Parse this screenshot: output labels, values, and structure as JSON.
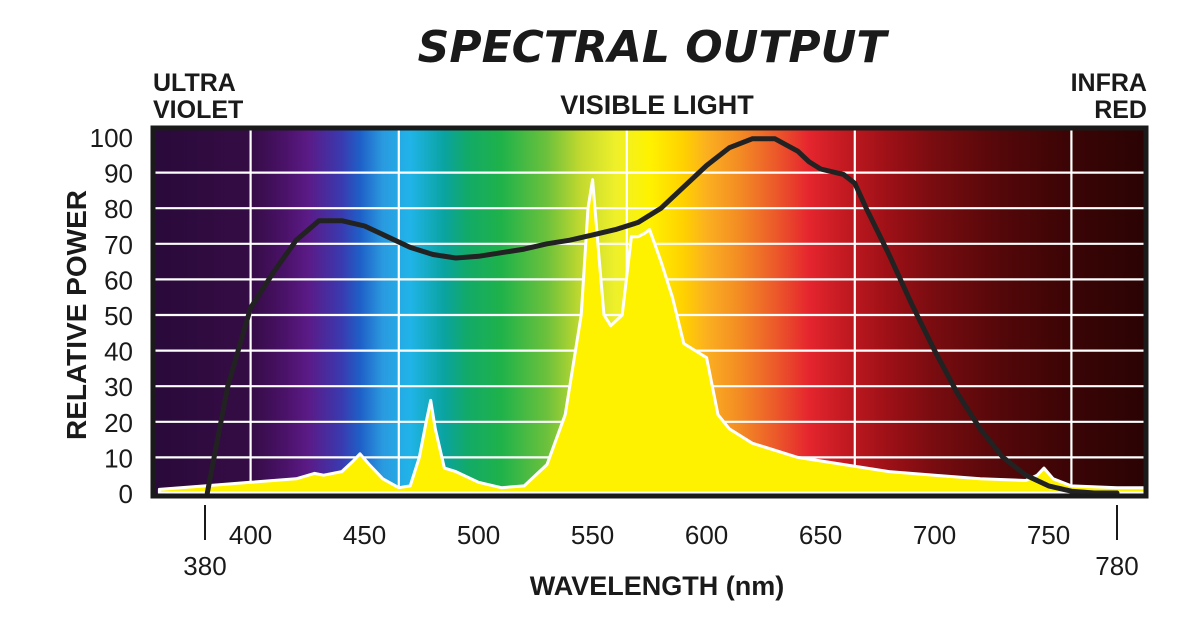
{
  "chart_data": {
    "type": "area",
    "title": "SPECTRAL OUTPUT",
    "xlabel": "WAVELENGTH (nm)",
    "ylabel": "RELATIVE POWER",
    "region_labels": {
      "left_line1": "ULTRA",
      "left_line2": "VIOLET",
      "center": "VISIBLE LIGHT",
      "right_line1": "INFRA",
      "right_line2": "RED"
    },
    "xlim": [
      360,
      800
    ],
    "ylim": [
      0,
      100
    ],
    "x_ticks": [
      400,
      450,
      500,
      550,
      600,
      650,
      700,
      750
    ],
    "x_tick_labels": [
      "400",
      "450",
      "500",
      "550",
      "600",
      "650",
      "700",
      "750"
    ],
    "x_extra_ticks": [
      380,
      780
    ],
    "x_extra_tick_labels": [
      "380",
      "780"
    ],
    "y_ticks": [
      0,
      10,
      20,
      30,
      40,
      50,
      60,
      70,
      80,
      90,
      100
    ],
    "y_tick_labels": [
      "0",
      "10",
      "20",
      "30",
      "40",
      "50",
      "60",
      "70",
      "80",
      "90",
      "100"
    ],
    "grid": true,
    "vertical_markers": [
      400,
      465,
      565,
      665,
      760
    ],
    "series": [
      {
        "color": "#fff200",
        "style": "filled-area",
        "x": [
          360,
          380,
          400,
          420,
          428,
          432,
          440,
          445,
          448,
          452,
          458,
          465,
          470,
          474,
          477,
          479,
          481,
          485,
          490,
          500,
          510,
          520,
          530,
          538,
          545,
          548,
          550,
          553,
          555,
          558,
          563,
          567,
          570,
          573,
          575,
          580,
          585,
          590,
          595,
          600,
          605,
          610,
          620,
          640,
          660,
          680,
          700,
          720,
          740,
          745,
          748,
          752,
          760,
          780,
          800
        ],
        "y": [
          1,
          2,
          3,
          4,
          5.5,
          5,
          6,
          9,
          11,
          8,
          4,
          1.5,
          2,
          10,
          20,
          26,
          18,
          7,
          6,
          3,
          1.5,
          2,
          8,
          22,
          50,
          80,
          88,
          65,
          50,
          47,
          50,
          72,
          72,
          73,
          74,
          65,
          55,
          42,
          40,
          38,
          22,
          18,
          14,
          10,
          8,
          6,
          5,
          4,
          3.5,
          5,
          7,
          4,
          2,
          1.5,
          1.5
        ]
      },
      {
        "color": "#222222",
        "style": "line",
        "x": [
          381,
          384,
          390,
          400,
          410,
          420,
          430,
          440,
          450,
          460,
          470,
          480,
          490,
          500,
          510,
          520,
          530,
          540,
          550,
          560,
          570,
          580,
          590,
          600,
          610,
          620,
          630,
          640,
          645,
          650,
          660,
          665,
          670,
          680,
          690,
          700,
          710,
          720,
          730,
          740,
          750,
          760,
          770,
          780
        ],
        "y": [
          0,
          10,
          30,
          52,
          62,
          71,
          76.5,
          76.5,
          75,
          72,
          69,
          67,
          66,
          66.5,
          67.5,
          68.5,
          70,
          71,
          72.5,
          74,
          76,
          80,
          86,
          92,
          97,
          99.5,
          99.5,
          96,
          93,
          91,
          89.5,
          87,
          80,
          67,
          53,
          40,
          28,
          18,
          10,
          5,
          2,
          0.5,
          0,
          0
        ]
      }
    ]
  }
}
